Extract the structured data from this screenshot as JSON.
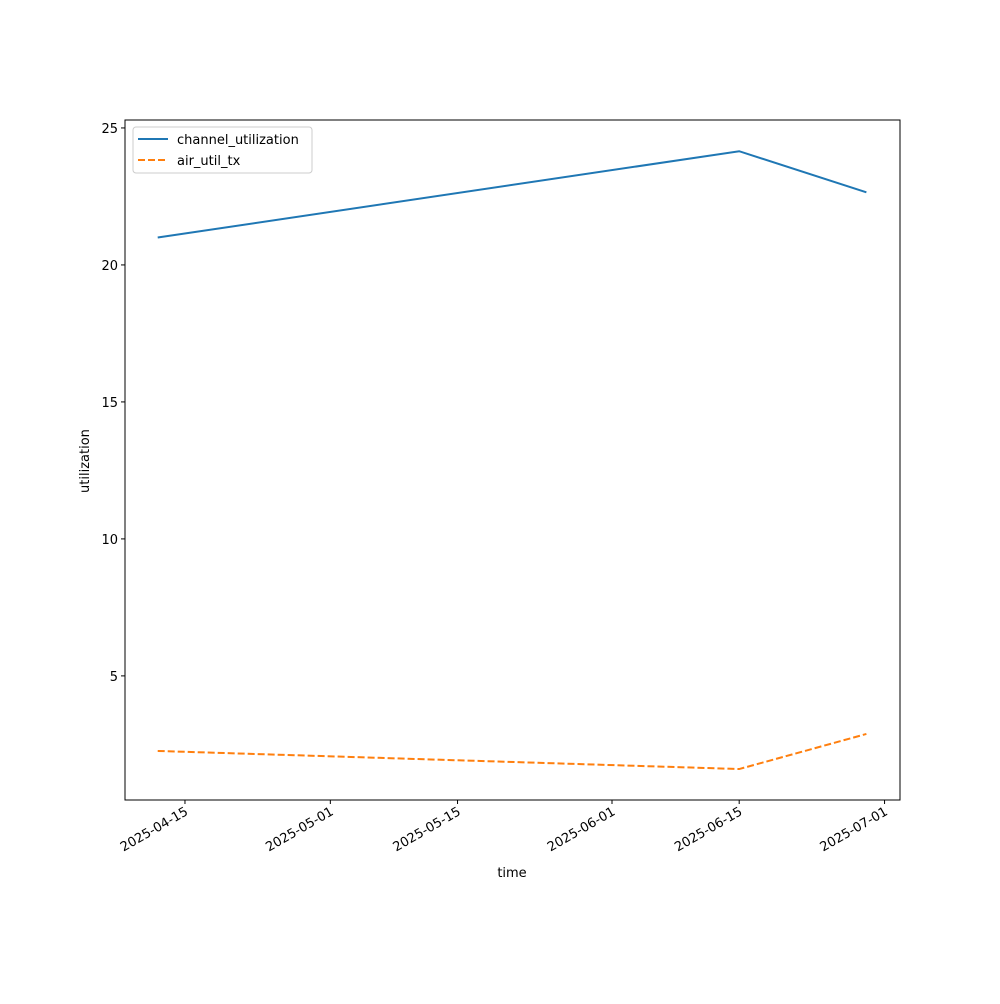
{
  "chart_data": {
    "type": "line",
    "x_label": "time",
    "y_label": "utilization",
    "x": [
      "2025-04-12",
      "2025-06-15",
      "2025-06-29"
    ],
    "series": [
      {
        "name": "channel_utilization",
        "color": "#1f77b4",
        "dash": "solid",
        "values": [
          21.0,
          24.15,
          22.65
        ]
      },
      {
        "name": "air_util_tx",
        "color": "#ff7f0e",
        "dash": "dashed",
        "values": [
          2.26,
          1.6,
          2.88
        ]
      }
    ],
    "xlim": [
      "2025-04-08T09:36",
      "2025-07-02T16:48"
    ],
    "xticks": [
      "2025-04-15",
      "2025-05-01",
      "2025-05-15",
      "2025-06-01",
      "2025-06-15",
      "2025-07-01"
    ],
    "ylim": [
      0.47,
      25.29
    ],
    "yticks": [
      5,
      10,
      15,
      20,
      25
    ],
    "legend": "upper left"
  }
}
